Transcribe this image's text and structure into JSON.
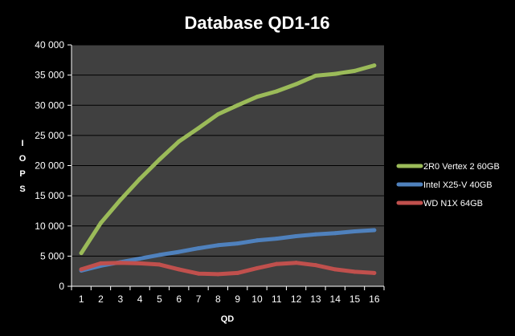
{
  "chart_data": {
    "type": "line",
    "title": "Database QD1-16",
    "xlabel": "QD",
    "ylabel": "IOPS",
    "x": [
      1,
      2,
      3,
      4,
      5,
      6,
      7,
      8,
      9,
      10,
      11,
      12,
      13,
      14,
      15,
      16
    ],
    "ylim": [
      0,
      40000
    ],
    "yticks": [
      0,
      5000,
      10000,
      15000,
      20000,
      25000,
      30000,
      35000,
      40000
    ],
    "ytick_labels": [
      "0",
      "5 000",
      "10 000",
      "15 000",
      "20 000",
      "25 000",
      "30 000",
      "35 000",
      "40 000"
    ],
    "grid": true,
    "legend_position": "right",
    "series": [
      {
        "name": "2R0 Vertex 2 60GB",
        "color": "#9bbb59",
        "values": [
          5500,
          10500,
          14300,
          17800,
          21000,
          24000,
          26200,
          28500,
          30000,
          31400,
          32300,
          33500,
          34900,
          35200,
          35700,
          36600
        ]
      },
      {
        "name": "Intel X25-V 40GB",
        "color": "#4f81bd",
        "values": [
          2600,
          3400,
          4000,
          4600,
          5200,
          5700,
          6300,
          6800,
          7100,
          7600,
          7900,
          8300,
          8600,
          8800,
          9100,
          9300
        ]
      },
      {
        "name": "WD N1X 64GB",
        "color": "#c0504d",
        "values": [
          2800,
          3800,
          3900,
          3800,
          3600,
          2800,
          2100,
          2000,
          2200,
          3000,
          3700,
          3900,
          3500,
          2800,
          2400,
          2200
        ]
      }
    ],
    "plot_background": "#404040",
    "page_background": "#000000"
  }
}
